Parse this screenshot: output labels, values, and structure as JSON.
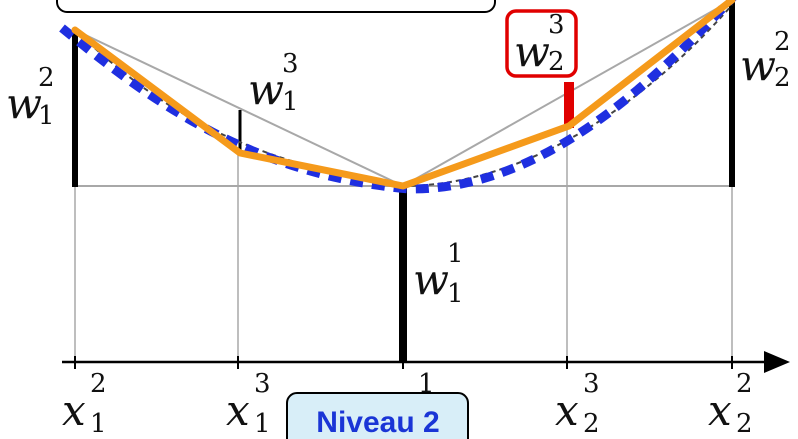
{
  "colors": {
    "orange_curve": "#F59A1B",
    "blue_dotted_curve": "#1F2FE0",
    "gray_lines": "#A8A8A8",
    "red_highlight": "#E00000",
    "badge_fill": "#D8EEF8",
    "badge_text": "#1A35D6",
    "black": "#000000"
  },
  "top_box": {
    "text": ""
  },
  "badge": {
    "text": "Niveau 2"
  },
  "labels": {
    "w": [
      {
        "base": "w",
        "sub": "1",
        "sup": "2"
      },
      {
        "base": "w",
        "sub": "1",
        "sup": "3"
      },
      {
        "base": "w",
        "sub": "2",
        "sup": "3"
      },
      {
        "base": "w",
        "sub": "2",
        "sup": "2"
      },
      {
        "base": "w",
        "sub": "1",
        "sup": "1"
      }
    ],
    "x": [
      {
        "base": "x",
        "sub": "1",
        "sup": "2"
      },
      {
        "base": "x",
        "sub": "1",
        "sup": "3"
      },
      {
        "base": "",
        "sub": "",
        "sup": "1"
      },
      {
        "base": "x",
        "sub": "2",
        "sup": "3"
      },
      {
        "base": "x",
        "sub": "2",
        "sup": "2"
      }
    ]
  }
}
